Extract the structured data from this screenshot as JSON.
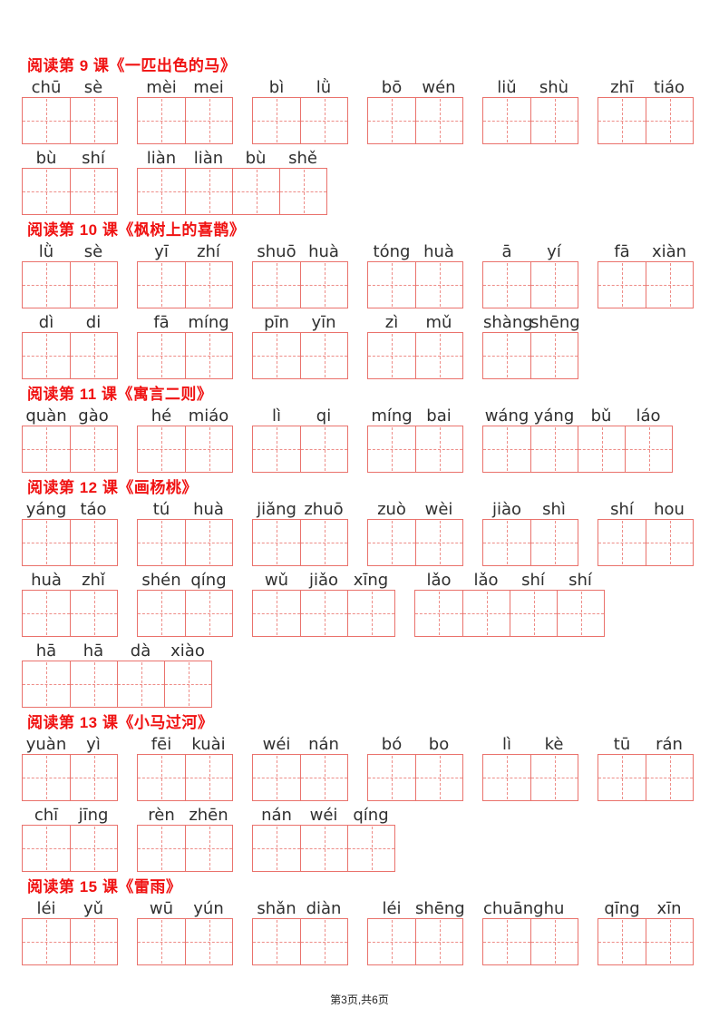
{
  "page": {
    "footer": "第3页,共6页",
    "accent_color": "#f01212",
    "grid_border_color": "#ea726c",
    "grid_dash_color": "#ee8d88",
    "pinyin_color": "#2f2f2f"
  },
  "sections": [
    {
      "title": "阅读第 9 课《一匹出色的马》",
      "rows": [
        [
          [
            "chū",
            "sè"
          ],
          [
            "mèi",
            "mei"
          ],
          [
            "bì",
            "lǜ"
          ],
          [
            "bō",
            "wén"
          ],
          [
            "liǔ",
            "shù"
          ],
          [
            "zhī",
            "tiáo"
          ]
        ],
        [
          [
            "bù",
            "shí"
          ],
          [
            "liàn",
            "liàn",
            "bù",
            "shě"
          ]
        ]
      ]
    },
    {
      "title": "阅读第 10 课《枫树上的喜鹊》",
      "rows": [
        [
          [
            "lǜ",
            "sè"
          ],
          [
            "yī",
            "zhí"
          ],
          [
            "shuō",
            "huà"
          ],
          [
            "tóng",
            "huà"
          ],
          [
            "ā",
            "yí"
          ],
          [
            "fā",
            "xiàn"
          ]
        ],
        [
          [
            "dì",
            "di"
          ],
          [
            "fā",
            "míng"
          ],
          [
            "pīn",
            "yīn"
          ],
          [
            "zì",
            "mǔ"
          ],
          [
            "shàng",
            "shēng"
          ]
        ]
      ]
    },
    {
      "title": "阅读第 11 课《寓言二则》",
      "rows": [
        [
          [
            "quàn",
            "gào"
          ],
          [
            "hé",
            "miáo"
          ],
          [
            "lì",
            "qi"
          ],
          [
            "míng",
            "bai"
          ],
          [
            "wáng",
            "yáng",
            "bǔ",
            "láo"
          ]
        ]
      ]
    },
    {
      "title": "阅读第 12 课《画杨桃》",
      "rows": [
        [
          [
            "yáng",
            "táo"
          ],
          [
            "tú",
            "huà"
          ],
          [
            "jiǎng",
            "zhuō"
          ],
          [
            "zuò",
            "wèi"
          ],
          [
            "jiào",
            "shì"
          ],
          [
            "shí",
            "hou"
          ]
        ],
        [
          [
            "huà",
            "zhǐ"
          ],
          [
            "shén",
            "qíng"
          ],
          [
            "wǔ",
            "jiǎo",
            "xīng"
          ],
          [
            "lǎo",
            "lǎo",
            "shí",
            "shí"
          ]
        ],
        [
          [
            "hā",
            "hā",
            "dà",
            "xiào"
          ]
        ]
      ]
    },
    {
      "title": "阅读第 13 课《小马过河》",
      "rows": [
        [
          [
            "yuàn",
            "yì"
          ],
          [
            "fēi",
            "kuài"
          ],
          [
            "wéi",
            "nán"
          ],
          [
            "bó",
            "bo"
          ],
          [
            "lì",
            "kè"
          ],
          [
            "tū",
            "rán"
          ]
        ],
        [
          [
            "chī",
            "jīng"
          ],
          [
            "rèn",
            "zhēn"
          ],
          [
            "nán",
            "wéi",
            "qíng"
          ]
        ]
      ]
    },
    {
      "title": "阅读第 15 课《雷雨》",
      "rows": [
        [
          [
            "léi",
            "yǔ"
          ],
          [
            "wū",
            "yún"
          ],
          [
            "shǎn",
            "diàn"
          ],
          [
            "léi",
            "shēng"
          ],
          [
            "chuāng",
            "hu"
          ],
          [
            "qīng",
            "xīn"
          ]
        ]
      ]
    }
  ]
}
